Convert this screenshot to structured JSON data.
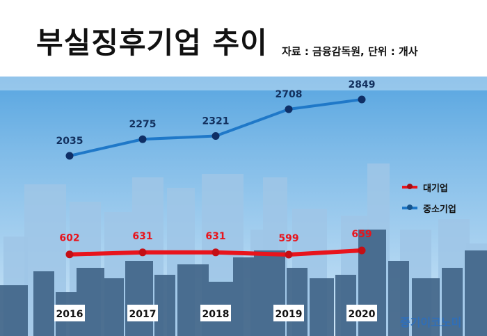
{
  "header": {
    "title": "부실징후기업 추이",
    "source": "자료 : 금융감독원, 단위 : 개사"
  },
  "watermark": "중기이코노미",
  "legend": [
    {
      "name": "대기업",
      "color": "#e8141c"
    },
    {
      "name": "중소기업",
      "color": "#1f78c8"
    }
  ],
  "chart_data": {
    "type": "line",
    "title": "부실징후기업 추이",
    "x": [
      "2016",
      "2017",
      "2018",
      "2019",
      "2020"
    ],
    "series": [
      {
        "name": "대기업",
        "values": [
          602,
          631,
          631,
          599,
          659
        ],
        "color": "#e8141c",
        "label_color": "#e8141c"
      },
      {
        "name": "중소기업",
        "values": [
          2035,
          2275,
          2321,
          2708,
          2849
        ],
        "color": "#1f78c8",
        "label_color": "#12305e"
      }
    ],
    "legend_position": "right",
    "grid": false
  }
}
